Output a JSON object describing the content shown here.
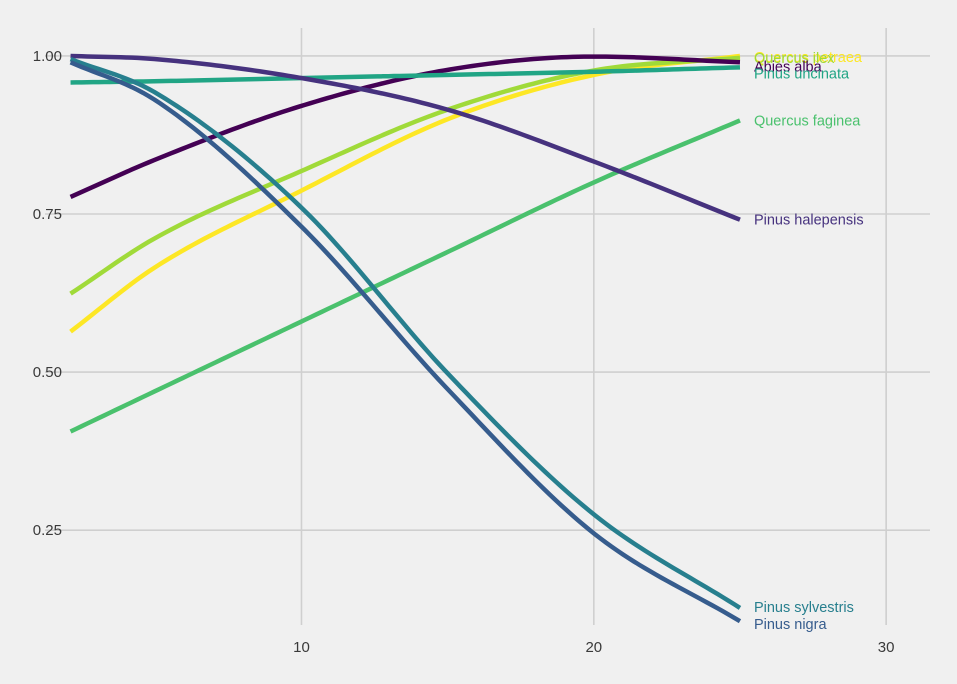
{
  "chart_data": {
    "type": "line",
    "title": "",
    "xlabel": "",
    "ylabel": "",
    "xlim": [
      0.2,
      31.5
    ],
    "ylim": [
      0.1,
      1.06
    ],
    "grid": true,
    "legend": "direct labels at line ends",
    "x_ticks": [
      {
        "value": 10,
        "label": "10"
      },
      {
        "value": 20,
        "label": "20"
      },
      {
        "value": 30,
        "label": "30"
      }
    ],
    "y_ticks": [
      {
        "value": 0.25,
        "label": "0.25"
      },
      {
        "value": 0.5,
        "label": "0.50"
      },
      {
        "value": 0.75,
        "label": "0.75"
      },
      {
        "value": 1.0,
        "label": "1.00"
      }
    ],
    "x": [
      2.1,
      5,
      10,
      15,
      20,
      25
    ],
    "series": [
      {
        "name": "Quercus petraea",
        "color": "#fde725",
        "values": [
          0.564,
          0.666,
          0.787,
          0.9,
          0.97,
          1.0
        ]
      },
      {
        "name": "Quercus ilex",
        "color": "#a0da39",
        "values": [
          0.624,
          0.712,
          0.818,
          0.915,
          0.977,
          0.997
        ]
      },
      {
        "name": "Abies alba",
        "color": "#440154",
        "values": [
          0.777,
          0.836,
          0.921,
          0.978,
          0.999,
          0.99
        ]
      },
      {
        "name": "Pinus uncinata",
        "color": "#21a585",
        "values": [
          0.958,
          0.96,
          0.965,
          0.97,
          0.975,
          0.982
        ]
      },
      {
        "name": "Quercus faginea",
        "color": "#4ac16d",
        "values": [
          0.406,
          0.47,
          0.58,
          0.69,
          0.8,
          0.898
        ]
      },
      {
        "name": "Pinus halepensis",
        "color": "#46327e",
        "values": [
          1.0,
          0.995,
          0.965,
          0.915,
          0.833,
          0.741
        ]
      },
      {
        "name": "Pinus sylvestris",
        "color": "#277f8e",
        "values": [
          0.995,
          0.942,
          0.76,
          0.498,
          0.275,
          0.127
        ]
      },
      {
        "name": "Pinus nigra",
        "color": "#365c8d",
        "values": [
          0.99,
          0.93,
          0.73,
          0.473,
          0.245,
          0.106
        ]
      }
    ]
  }
}
